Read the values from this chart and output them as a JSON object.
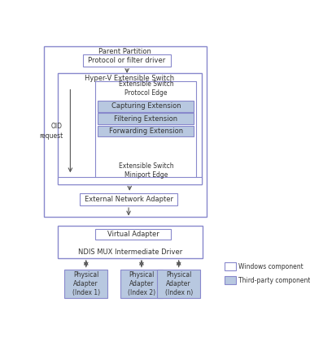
{
  "bg_color": "#ffffff",
  "border_color": "#8888cc",
  "box_fill_white": "#ffffff",
  "box_fill_blue": "#b8c8e0",
  "text_color": "#333333",
  "font_size": 6.0,
  "boxes": {
    "parent_partition_label": "Parent Partition",
    "protocol_label": "Protocol or filter driver",
    "hyperv_label": "Hyper-V Extensible Switch",
    "protocol_edge_label": "Extensible Switch\nProtocol Edge",
    "capturing_label": "Capturing Extension",
    "filtering_label": "Filtering Extension",
    "forwarding_label": "Forwarding Extension",
    "miniport_edge_label": "Extensible Switch\nMiniport Edge",
    "external_na_label": "External Network Adapter",
    "ndis_mux_outer_label": "NDIS MUX Intermediate Driver",
    "virtual_adapter_label": "Virtual Adapter",
    "physical1_label": "Physical\nAdapter\n(Index 1)",
    "physical2_label": "Physical\nAdapter\n(Index 2)",
    "physicaln_label": "Physical\nAdapter\n(Index n)"
  },
  "oid_label": "OID\nrequest",
  "legend": {
    "windows_label": "Windows component",
    "thirdparty_label": "Third-party component"
  }
}
